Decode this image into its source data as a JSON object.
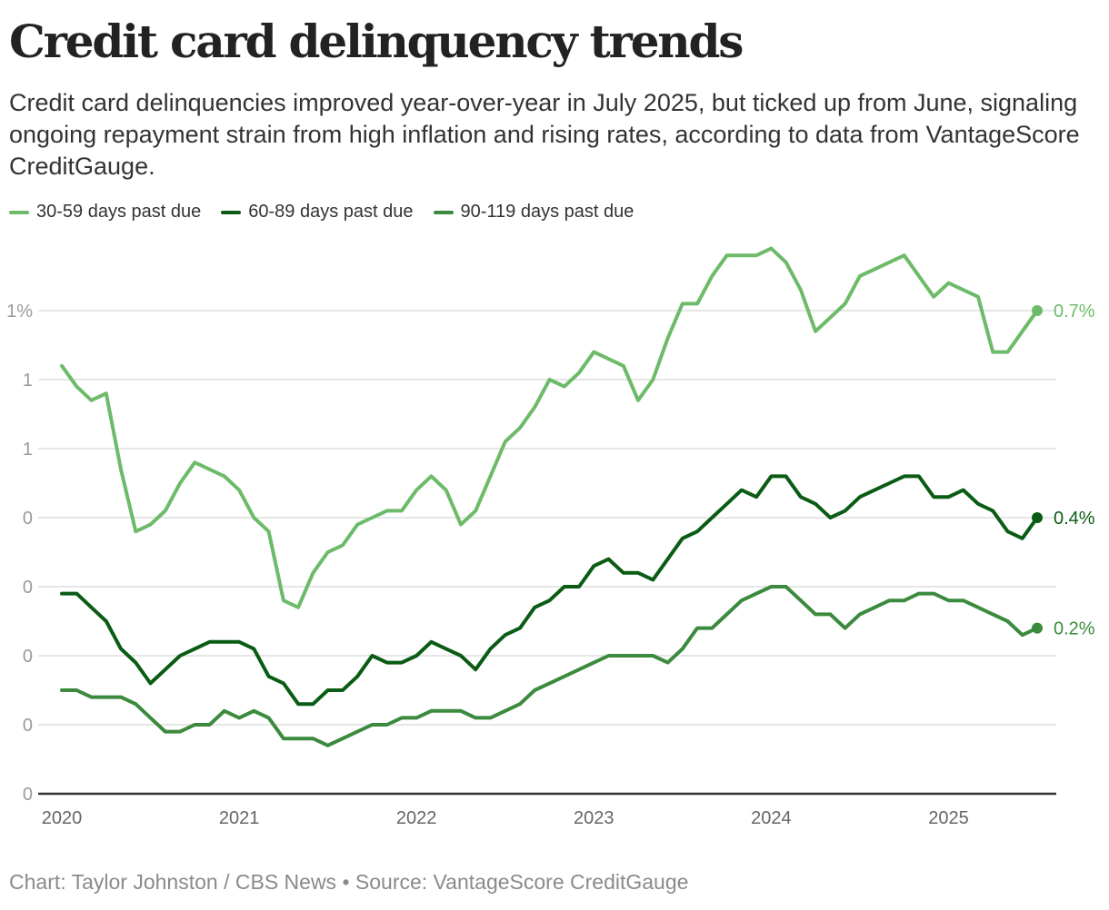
{
  "header": {
    "title": "Credit card delinquency trends",
    "subtitle": "Credit card delinquencies improved year-over-year in July 2025, but ticked up from June, signaling ongoing repayment strain from high inflation and rising rates, according to data from VantageScore CreditGauge."
  },
  "footer": {
    "credit": "Chart: Taylor Johnston / CBS News • Source: VantageScore CreditGauge"
  },
  "chart_data": {
    "type": "line",
    "title": "Credit card delinquency trends",
    "xlabel": "",
    "ylabel": "",
    "x_start": "2020-01",
    "x_end": "2025-07",
    "x_interval": "monthly",
    "x_ticks": [
      "2020",
      "2021",
      "2022",
      "2023",
      "2024",
      "2025"
    ],
    "y_ticks": [
      {
        "value": 0.7,
        "label": "1%"
      },
      {
        "value": 0.6,
        "label": "1"
      },
      {
        "value": 0.5,
        "label": "1"
      },
      {
        "value": 0.4,
        "label": "0"
      },
      {
        "value": 0.3,
        "label": "0"
      },
      {
        "value": 0.2,
        "label": "0"
      },
      {
        "value": 0.1,
        "label": "0"
      },
      {
        "value": 0.0,
        "label": "0"
      }
    ],
    "ylim": [
      0,
      0.7
    ],
    "grid": true,
    "legend_position": "top-left",
    "series": [
      {
        "name": "30-59 days past due",
        "color": "#6dbb6a",
        "end_label": "0.7%",
        "values": [
          0.62,
          0.59,
          0.57,
          0.58,
          0.47,
          0.38,
          0.39,
          0.41,
          0.45,
          0.48,
          0.47,
          0.46,
          0.44,
          0.4,
          0.38,
          0.28,
          0.27,
          0.32,
          0.35,
          0.36,
          0.39,
          0.4,
          0.41,
          0.41,
          0.44,
          0.46,
          0.44,
          0.39,
          0.41,
          0.46,
          0.51,
          0.53,
          0.56,
          0.6,
          0.59,
          0.61,
          0.64,
          0.63,
          0.62,
          0.57,
          0.6,
          0.66,
          0.71,
          0.71,
          0.75,
          0.78,
          0.78,
          0.78,
          0.79,
          0.77,
          0.73,
          0.67,
          0.69,
          0.71,
          0.75,
          0.76,
          0.77,
          0.78,
          0.75,
          0.72,
          0.74,
          0.73,
          0.72,
          0.64,
          0.64,
          0.67,
          0.7
        ]
      },
      {
        "name": "60-89 days past due",
        "color": "#0a5c14",
        "end_label": "0.4%",
        "values": [
          0.29,
          0.29,
          0.27,
          0.25,
          0.21,
          0.19,
          0.16,
          0.18,
          0.2,
          0.21,
          0.22,
          0.22,
          0.22,
          0.21,
          0.17,
          0.16,
          0.13,
          0.13,
          0.15,
          0.15,
          0.17,
          0.2,
          0.19,
          0.19,
          0.2,
          0.22,
          0.21,
          0.2,
          0.18,
          0.21,
          0.23,
          0.24,
          0.27,
          0.28,
          0.3,
          0.3,
          0.33,
          0.34,
          0.32,
          0.32,
          0.31,
          0.34,
          0.37,
          0.38,
          0.4,
          0.42,
          0.44,
          0.43,
          0.46,
          0.46,
          0.43,
          0.42,
          0.4,
          0.41,
          0.43,
          0.44,
          0.45,
          0.46,
          0.46,
          0.43,
          0.43,
          0.44,
          0.42,
          0.41,
          0.38,
          0.37,
          0.4
        ]
      },
      {
        "name": "90-119 days past due",
        "color": "#3b8a3e",
        "end_label": "0.2%",
        "values": [
          0.15,
          0.15,
          0.14,
          0.14,
          0.14,
          0.13,
          0.11,
          0.09,
          0.09,
          0.1,
          0.1,
          0.12,
          0.11,
          0.12,
          0.11,
          0.08,
          0.08,
          0.08,
          0.07,
          0.08,
          0.09,
          0.1,
          0.1,
          0.11,
          0.11,
          0.12,
          0.12,
          0.12,
          0.11,
          0.11,
          0.12,
          0.13,
          0.15,
          0.16,
          0.17,
          0.18,
          0.19,
          0.2,
          0.2,
          0.2,
          0.2,
          0.19,
          0.21,
          0.24,
          0.24,
          0.26,
          0.28,
          0.29,
          0.3,
          0.3,
          0.28,
          0.26,
          0.26,
          0.24,
          0.26,
          0.27,
          0.28,
          0.28,
          0.29,
          0.29,
          0.28,
          0.28,
          0.27,
          0.26,
          0.25,
          0.23,
          0.24
        ]
      }
    ]
  }
}
